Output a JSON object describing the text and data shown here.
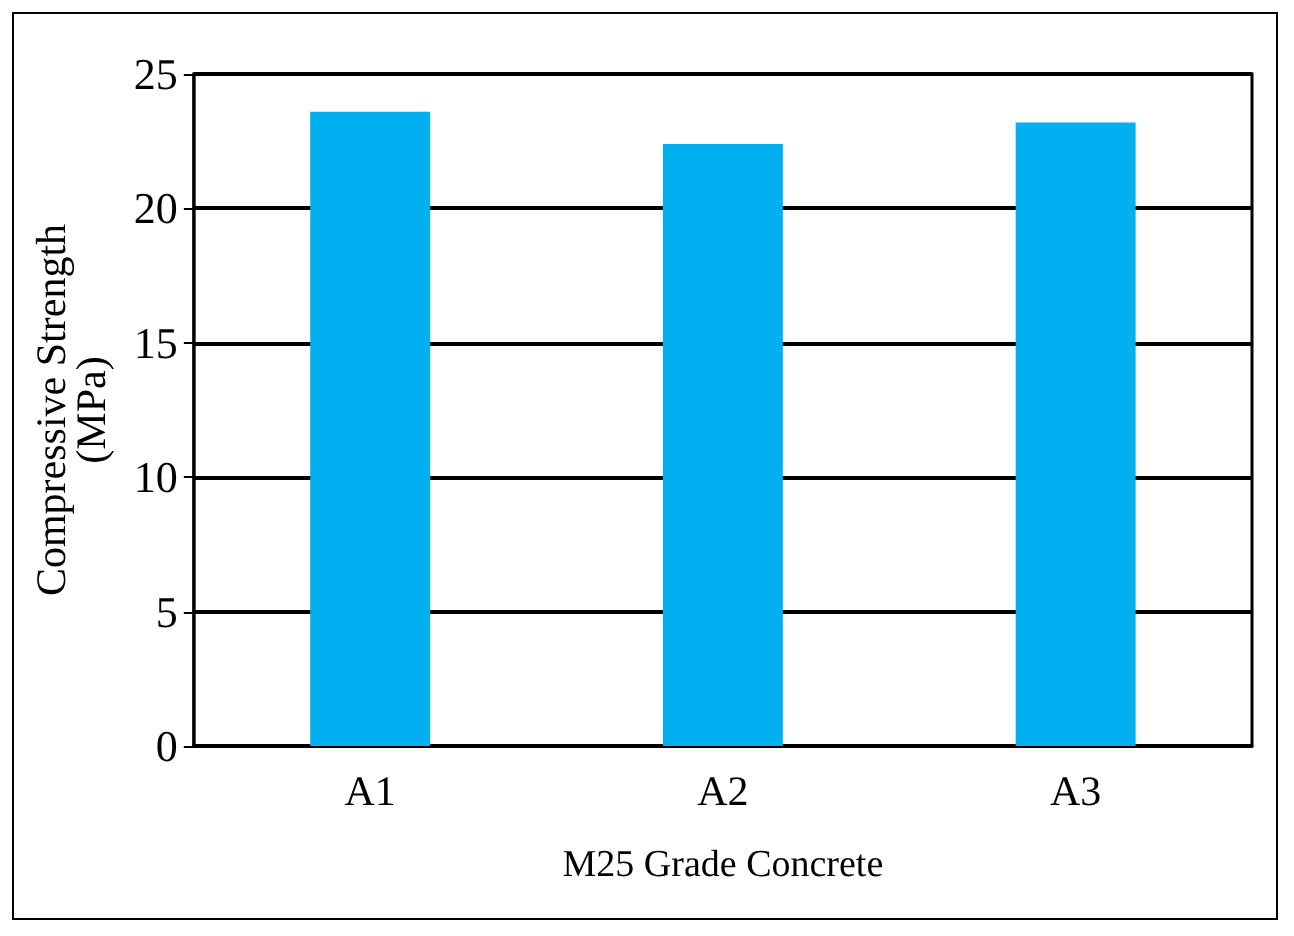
{
  "chart_data": {
    "type": "bar",
    "xlabel": "M25 Grade Concrete",
    "ylabel": "Compressive Strength\n(MPa)",
    "categories": [
      "A1",
      "A2",
      "A3"
    ],
    "values": [
      23.6,
      22.4,
      23.2
    ],
    "color": "#00b0f0",
    "ylim": [
      0,
      25
    ],
    "yticks": [
      0,
      5,
      10,
      15,
      20,
      25
    ],
    "grid": "y"
  }
}
